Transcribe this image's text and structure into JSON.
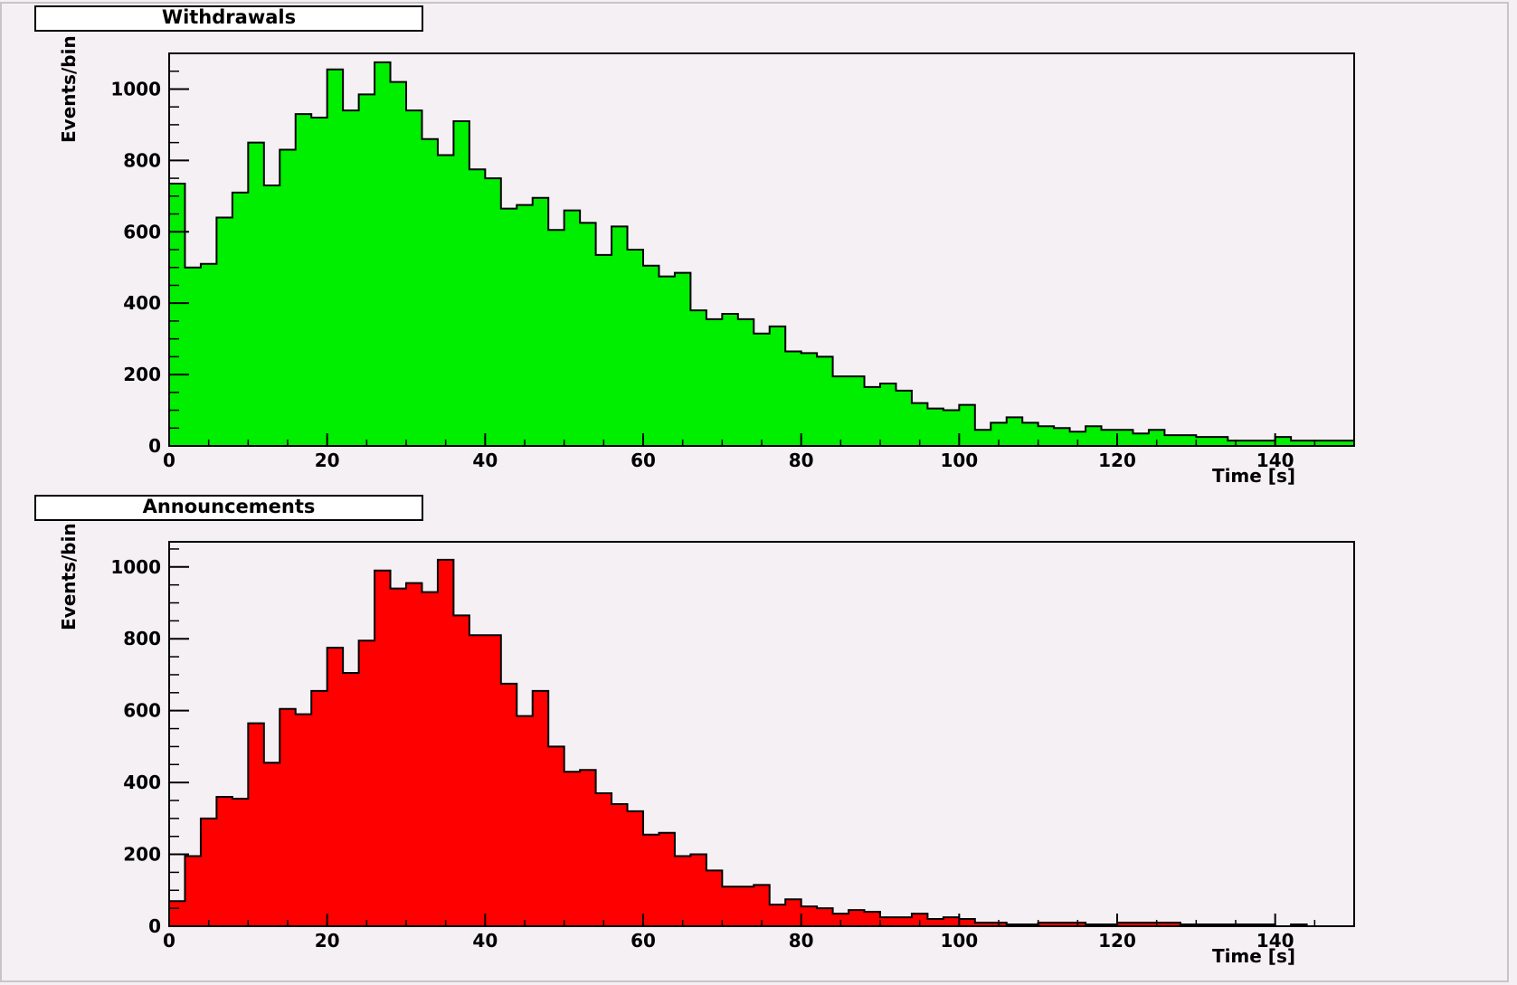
{
  "chart_data": [
    {
      "type": "bar",
      "title": "Withdrawals",
      "xlabel": "Time [s]",
      "ylabel": "Events/bin",
      "color": "#00ee00",
      "xlim": [
        0,
        150
      ],
      "ylim": [
        0,
        1100
      ],
      "bin_width": 2,
      "x_ticks": [
        0,
        20,
        40,
        60,
        80,
        100,
        120,
        140
      ],
      "y_ticks": [
        0,
        200,
        400,
        600,
        800,
        1000
      ],
      "values": [
        735,
        500,
        510,
        640,
        710,
        850,
        730,
        830,
        930,
        920,
        1055,
        940,
        985,
        1075,
        1020,
        940,
        860,
        815,
        910,
        775,
        750,
        665,
        675,
        695,
        605,
        660,
        625,
        535,
        615,
        550,
        505,
        475,
        485,
        380,
        355,
        370,
        355,
        315,
        335,
        265,
        260,
        250,
        195,
        195,
        165,
        175,
        155,
        120,
        105,
        100,
        115,
        45,
        65,
        80,
        65,
        55,
        50,
        40,
        55,
        45,
        45,
        35,
        45,
        30,
        30,
        25,
        25,
        15,
        15,
        15,
        25,
        15,
        15,
        15,
        15
      ]
    },
    {
      "type": "bar",
      "title": "Announcements",
      "xlabel": "Time [s]",
      "ylabel": "Events/bin",
      "color": "#ff0000",
      "xlim": [
        0,
        150
      ],
      "ylim": [
        0,
        1070
      ],
      "bin_width": 2,
      "x_ticks": [
        0,
        20,
        40,
        60,
        80,
        100,
        120,
        140
      ],
      "y_ticks": [
        0,
        200,
        400,
        600,
        800,
        1000
      ],
      "values": [
        70,
        195,
        300,
        360,
        355,
        565,
        455,
        605,
        590,
        655,
        775,
        705,
        795,
        990,
        940,
        955,
        930,
        1020,
        865,
        810,
        810,
        675,
        585,
        655,
        500,
        430,
        435,
        370,
        340,
        320,
        255,
        260,
        195,
        200,
        155,
        110,
        110,
        115,
        60,
        75,
        55,
        50,
        35,
        45,
        40,
        25,
        25,
        35,
        20,
        25,
        20,
        10,
        10,
        5,
        5,
        10,
        10,
        10,
        5,
        5,
        10,
        10,
        10,
        10,
        5,
        5,
        5,
        5,
        5,
        5,
        0,
        5,
        0,
        0,
        0
      ]
    }
  ]
}
